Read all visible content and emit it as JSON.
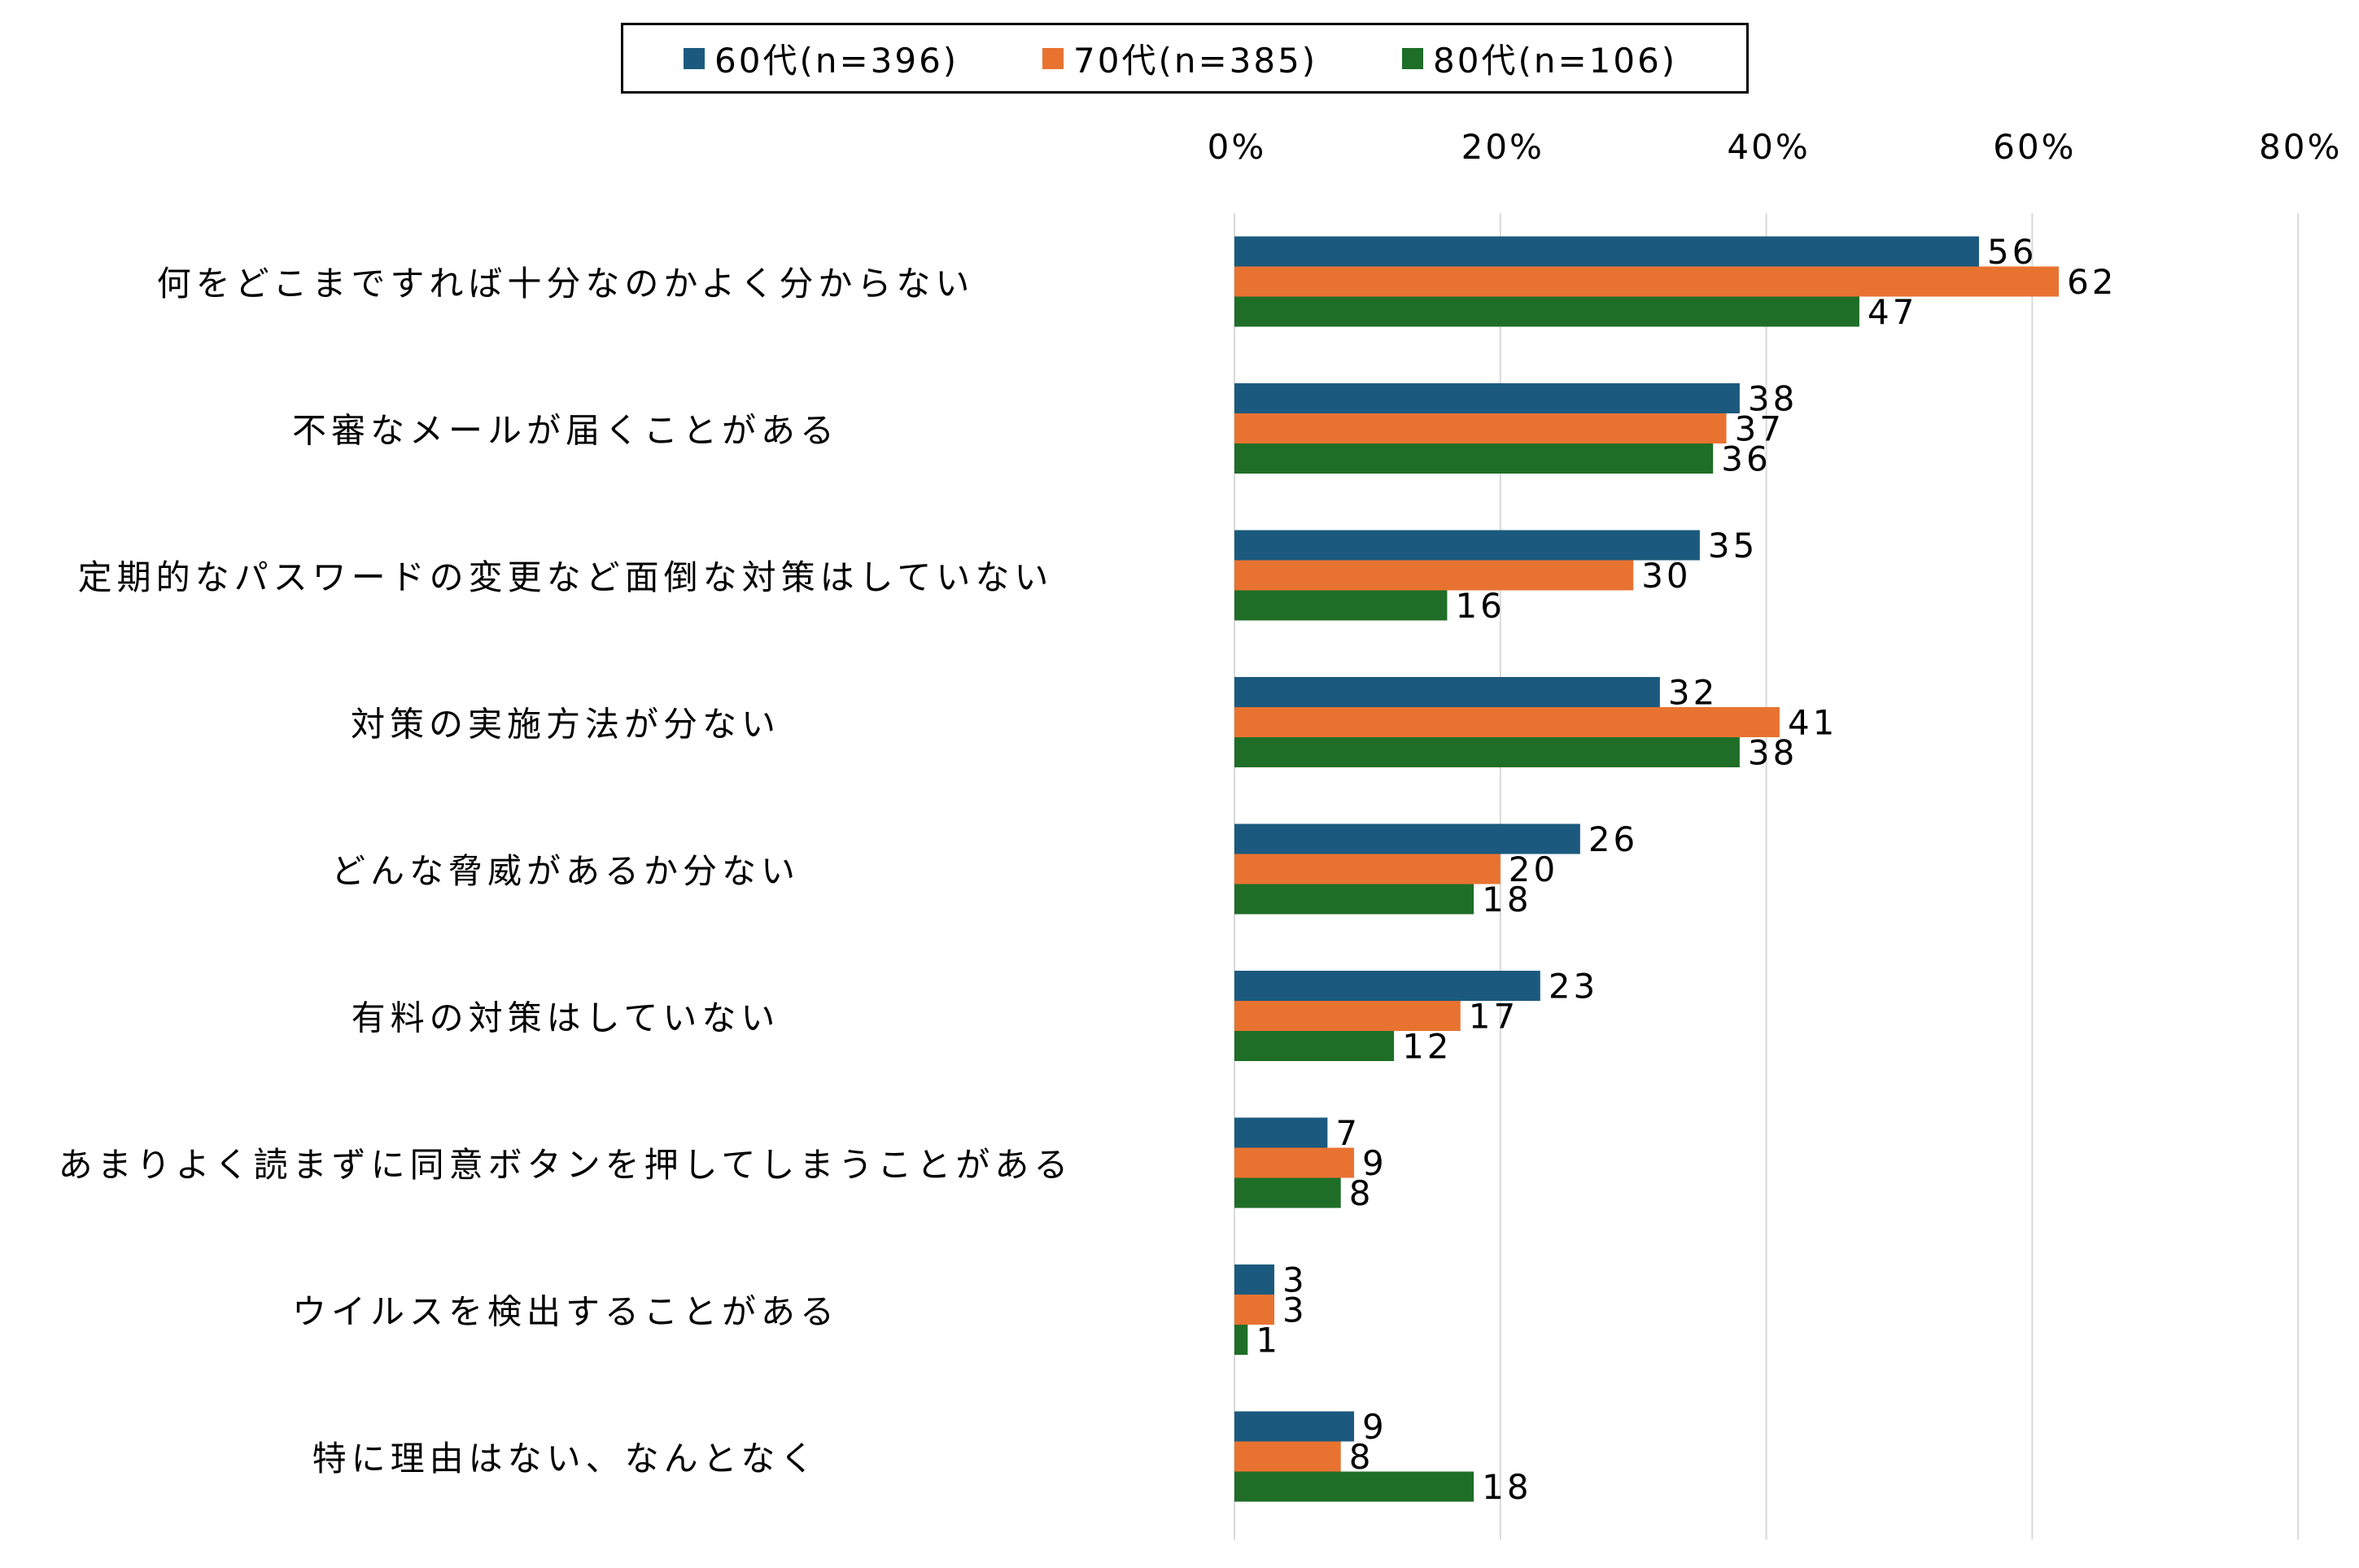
{
  "chart_data": {
    "type": "bar",
    "orientation": "horizontal",
    "title": "",
    "xlabel": "",
    "ylabel": "",
    "xlim": [
      0,
      80
    ],
    "x_ticks": [
      0,
      20,
      40,
      60,
      80
    ],
    "x_tick_labels": [
      "0%",
      "20%",
      "40%",
      "60%",
      "80%"
    ],
    "grid": true,
    "legend_position": "top-center",
    "categories": [
      "何をどこまですれば十分なのかよく分からない",
      "不審なメールが届くことがある",
      "定期的なパスワードの変更など面倒な対策はしていない",
      "対策の実施方法が分ない",
      "どんな脅威があるか分ない",
      "有料の対策はしていない",
      "あまりよく読まずに同意ボタンを押してしまうことがある",
      "ウイルスを検出することがある",
      "特に理由はない、なんとなく"
    ],
    "series": [
      {
        "name": "60代(n=396)",
        "color": "#1b5a7e",
        "values": [
          56,
          38,
          35,
          32,
          26,
          23,
          7,
          3,
          9
        ]
      },
      {
        "name": "70代(n=385)",
        "color": "#e87331",
        "values": [
          62,
          37,
          30,
          41,
          20,
          17,
          9,
          3,
          8
        ]
      },
      {
        "name": "80代(n=106)",
        "color": "#1f6e27",
        "values": [
          47,
          36,
          16,
          38,
          18,
          12,
          8,
          1,
          18
        ]
      }
    ]
  }
}
